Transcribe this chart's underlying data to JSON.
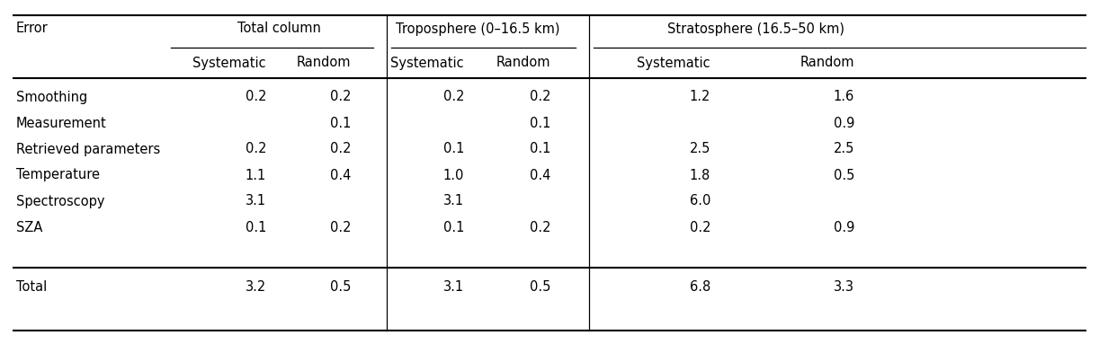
{
  "col_headers_row1_labels": [
    "Error",
    "Total column",
    "Troposphere (0–16.5 km)",
    "Stratosphere (16.5–50 km)"
  ],
  "col_headers_row2": [
    "Systematic",
    "Random",
    "Systematic",
    "Random",
    "Systematic",
    "Random"
  ],
  "rows": [
    [
      "Smoothing",
      "0.2",
      "0.2",
      "0.2",
      "0.2",
      "1.2",
      "1.6"
    ],
    [
      "Measurement",
      "",
      "0.1",
      "",
      "0.1",
      "",
      "0.9"
    ],
    [
      "Retrieved parameters",
      "0.2",
      "0.2",
      "0.1",
      "0.1",
      "2.5",
      "2.5"
    ],
    [
      "Temperature",
      "1.1",
      "0.4",
      "1.0",
      "0.4",
      "1.8",
      "0.5"
    ],
    [
      "Spectroscopy",
      "3.1",
      "",
      "3.1",
      "",
      "6.0",
      ""
    ],
    [
      "SZA",
      "0.1",
      "0.2",
      "0.1",
      "0.2",
      "0.2",
      "0.9"
    ]
  ],
  "total_row": [
    "Total",
    "3.2",
    "0.5",
    "3.1",
    "0.5",
    "6.8",
    "3.3"
  ],
  "bg_color": "#ffffff",
  "text_color": "#000000",
  "fontsize": 10.5
}
